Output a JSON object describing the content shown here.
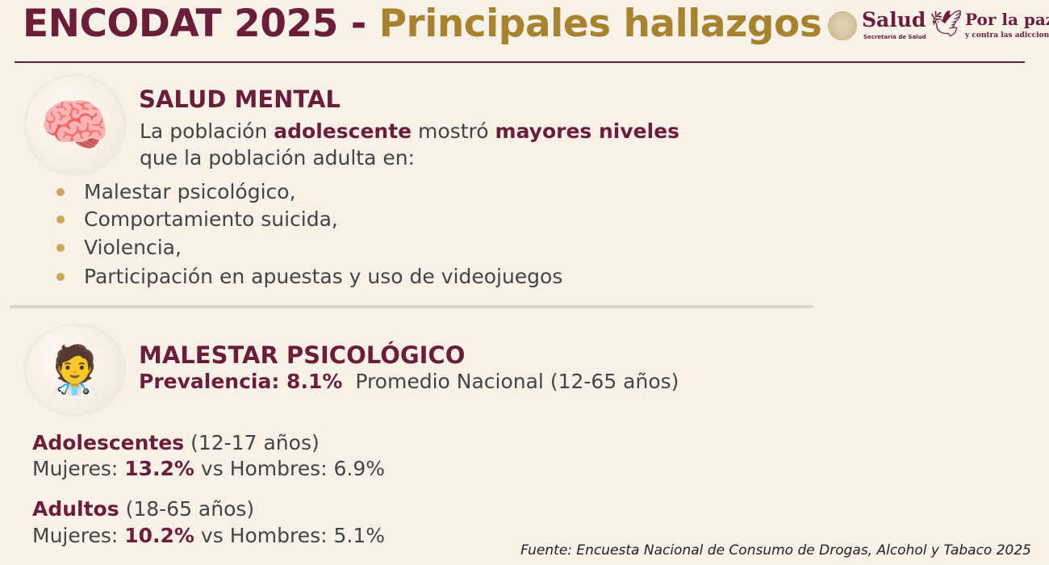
{
  "header": {
    "title_part1": "ENCODAT 2025 - ",
    "title_part2": "Principales hallazgos",
    "logos": {
      "salud": "Salud",
      "salud_sub": "Secretaría de Salud",
      "paz": "Por la paz",
      "paz_sub": "y contra las adicciones"
    }
  },
  "colors": {
    "maroon": "#6b1e3a",
    "gold": "#a8832f",
    "background": "#f8f1e7"
  },
  "salud_mental": {
    "icon": "brain-icon",
    "heading": "SALUD MENTAL",
    "intro": {
      "t1": "La población ",
      "b1": "adolescente",
      "t2": " mostró ",
      "b2": "mayores niveles",
      "line2": "que la población adulta en:"
    },
    "items": [
      {
        "label": "Malestar psicológico,"
      },
      {
        "label": "Comportamiento suicida,"
      },
      {
        "label": "Violencia,"
      },
      {
        "label": "Participación en apuestas y uso de videojuegos"
      }
    ]
  },
  "malestar": {
    "icon": "psychology-head-icon",
    "heading": "MALESTAR PSICOLÓGICO",
    "prevalence_label": "Prevalencia: 8.1%",
    "prevalence_note": "Promedio Nacional (12-65 años)",
    "adolescentes": {
      "label": "Adolescentes",
      "range": " (12-17 años)",
      "women_label": "Mujeres: ",
      "women": "13.2%",
      "men_label": " vs Hombres: 6.9%"
    },
    "adultos": {
      "label": "Adultos",
      "range": " (18-65 años)",
      "women_label": "Mujeres: ",
      "women": "10.2%",
      "men_label": " vs Hombres: 5.1%"
    }
  },
  "source": "Fuente: Encuesta Nacional de Consumo de Drogas, Alcohol y Tabaco 2025"
}
